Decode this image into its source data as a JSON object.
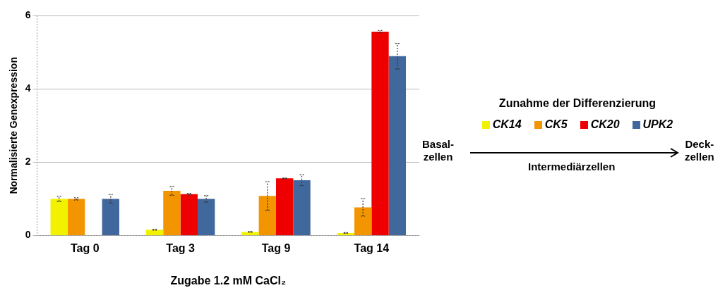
{
  "chart_data": {
    "type": "bar",
    "xlabel": "Zugabe 1.2 mM CaCl₂",
    "ylabel": "Normalisierte Genexpression",
    "legend_title": "Zunahme der Differenzierung",
    "categories": [
      "Tag 0",
      "Tag 3",
      "Tag 9",
      "Tag 14"
    ],
    "series": [
      {
        "name": "CK14",
        "color": "#f2f200",
        "values": [
          1.0,
          0.16,
          0.1,
          0.07
        ],
        "errors": [
          0.07,
          0.01,
          0.01,
          0.01
        ]
      },
      {
        "name": "CK5",
        "color": "#f29500",
        "values": [
          1.0,
          1.22,
          1.08,
          0.77
        ],
        "errors": [
          0.03,
          0.12,
          0.39,
          0.24
        ]
      },
      {
        "name": "CK20",
        "color": "#ee0000",
        "values": [
          null,
          1.13,
          1.56,
          5.56
        ],
        "errors": [
          null,
          0.02,
          0.01,
          0.03
        ]
      },
      {
        "name": "UPK2",
        "color": "#41689c",
        "values": [
          1.0,
          1.0,
          1.51,
          4.89
        ],
        "errors": [
          0.12,
          0.09,
          0.15,
          0.35
        ]
      }
    ],
    "ylim": [
      0,
      6
    ],
    "yticks": [
      0,
      2,
      4,
      6
    ],
    "grid": "y",
    "legend": "right",
    "annotations": [
      "Basal-\nzellen",
      "Intermediärzellen",
      "Deck-\nzellen"
    ]
  }
}
